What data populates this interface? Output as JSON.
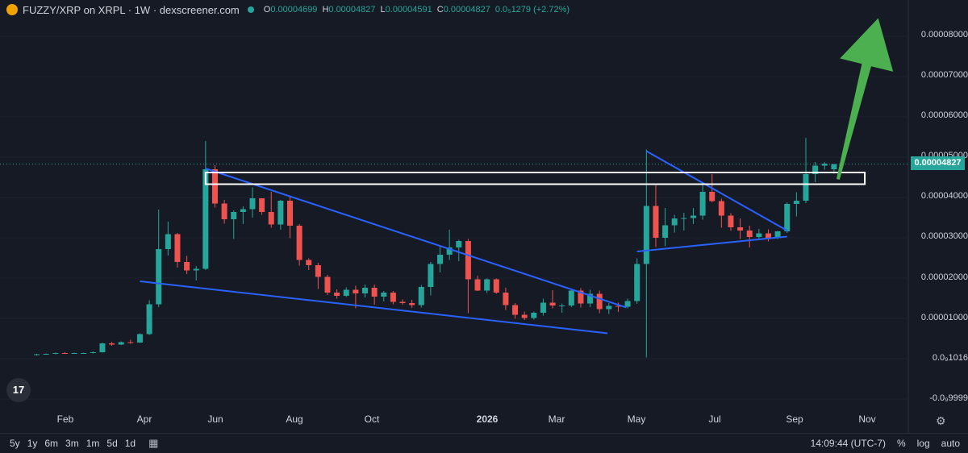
{
  "header": {
    "title": "FUZZY/XRP on XRPL · 1W · dexscreener.com",
    "ohlc": [
      {
        "k": "O",
        "v": "0.00004699"
      },
      {
        "k": "H",
        "v": "0.00004827"
      },
      {
        "k": "L",
        "v": "0.00004591"
      },
      {
        "k": "C",
        "v": "0.00004827"
      }
    ],
    "change": "0.0₅1279 (+2.72%)"
  },
  "price_axis": [
    "0.00008000",
    "0.00007000",
    "0.00006000",
    "0.00005000",
    "0.00004000",
    "0.00003000",
    "0.00002000",
    "0.00001000",
    "0.0₉1016",
    "-0.0₉9999"
  ],
  "last_price": "0.00004827",
  "time_axis": [
    "Feb",
    "Apr",
    "Jun",
    "Aug",
    "Oct",
    "2026",
    "Mar",
    "May",
    "Jul",
    "Sep",
    "Nov"
  ],
  "bottom_bar": {
    "ranges": [
      "5y",
      "1y",
      "6m",
      "3m",
      "1m",
      "5d",
      "1d"
    ],
    "time": "14:09:44 (UTC-7)",
    "pct": "%",
    "log": "log",
    "auto": "auto"
  },
  "logo_text": "17",
  "colors": {
    "up": "#26a69a",
    "down": "#ef5350",
    "trendline": "#2962ff",
    "arrow": "#4caf50",
    "box": "#ffffff"
  },
  "chart_data": {
    "type": "candlestick",
    "y_unit": "XRP",
    "ylim": [
      0,
      8.5e-05
    ],
    "x_range": [
      "2025-01-01",
      "2026-12-15"
    ],
    "candles": [
      {
        "t": "2025-01-20",
        "o": 9e-07,
        "h": 1.2e-06,
        "l": 8e-07,
        "c": 1.1e-06
      },
      {
        "t": "2025-01-27",
        "o": 1.1e-06,
        "h": 1.3e-06,
        "l": 1e-06,
        "c": 1.2e-06
      },
      {
        "t": "2025-02-03",
        "o": 1.2e-06,
        "h": 1.5e-06,
        "l": 1.1e-06,
        "c": 1.4e-06
      },
      {
        "t": "2025-02-10",
        "o": 1.4e-06,
        "h": 1.6e-06,
        "l": 1.2e-06,
        "c": 1.3e-06
      },
      {
        "t": "2025-02-17",
        "o": 1.3e-06,
        "h": 1.5e-06,
        "l": 1.2e-06,
        "c": 1.4e-06
      },
      {
        "t": "2025-02-24",
        "o": 1.4e-06,
        "h": 1.5e-06,
        "l": 1.3e-06,
        "c": 1.4e-06
      },
      {
        "t": "2025-03-03",
        "o": 1.4e-06,
        "h": 1.8e-06,
        "l": 1.3e-06,
        "c": 1.6e-06
      },
      {
        "t": "2025-03-10",
        "o": 1.6e-06,
        "h": 4e-06,
        "l": 1.5e-06,
        "c": 3.8e-06
      },
      {
        "t": "2025-03-17",
        "o": 3.8e-06,
        "h": 4.2e-06,
        "l": 3.2e-06,
        "c": 3.5e-06
      },
      {
        "t": "2025-03-24",
        "o": 3.5e-06,
        "h": 4.3e-06,
        "l": 3.4e-06,
        "c": 4.1e-06
      },
      {
        "t": "2025-03-31",
        "o": 4.1e-06,
        "h": 4.7e-06,
        "l": 3.7e-06,
        "c": 4e-06
      },
      {
        "t": "2025-04-07",
        "o": 4e-06,
        "h": 6.3e-06,
        "l": 3.9e-06,
        "c": 6.1e-06
      },
      {
        "t": "2025-04-14",
        "o": 6.1e-06,
        "h": 1.45e-05,
        "l": 5.9e-06,
        "c": 1.35e-05
      },
      {
        "t": "2025-04-21",
        "o": 1.35e-05,
        "h": 3.7e-05,
        "l": 1.28e-05,
        "c": 2.72e-05
      },
      {
        "t": "2025-04-28",
        "o": 2.72e-05,
        "h": 3.4e-05,
        "l": 2.56e-05,
        "c": 3.09e-05
      },
      {
        "t": "2025-05-05",
        "o": 3.09e-05,
        "h": 3.12e-05,
        "l": 2.26e-05,
        "c": 2.4e-05
      },
      {
        "t": "2025-05-12",
        "o": 2.4e-05,
        "h": 2.55e-05,
        "l": 2.1e-05,
        "c": 2.19e-05
      },
      {
        "t": "2025-05-19",
        "o": 2.19e-05,
        "h": 2.3e-05,
        "l": 1.94e-05,
        "c": 2.23e-05
      },
      {
        "t": "2025-05-26",
        "o": 2.23e-05,
        "h": 5.4e-05,
        "l": 2.2e-05,
        "c": 4.7e-05
      },
      {
        "t": "2025-06-02",
        "o": 4.7e-05,
        "h": 4.8e-05,
        "l": 3.75e-05,
        "c": 3.85e-05
      },
      {
        "t": "2025-06-09",
        "o": 3.85e-05,
        "h": 3.94e-05,
        "l": 3.35e-05,
        "c": 3.46e-05
      },
      {
        "t": "2025-06-16",
        "o": 3.46e-05,
        "h": 3.68e-05,
        "l": 2.97e-05,
        "c": 3.64e-05
      },
      {
        "t": "2025-06-23",
        "o": 3.64e-05,
        "h": 3.78e-05,
        "l": 3.34e-05,
        "c": 3.71e-05
      },
      {
        "t": "2025-06-30",
        "o": 3.71e-05,
        "h": 4.25e-05,
        "l": 3.5e-05,
        "c": 3.98e-05
      },
      {
        "t": "2025-07-07",
        "o": 3.98e-05,
        "h": 3.98e-05,
        "l": 3.57e-05,
        "c": 3.64e-05
      },
      {
        "t": "2025-07-14",
        "o": 3.64e-05,
        "h": 4.14e-05,
        "l": 3.25e-05,
        "c": 3.33e-05
      },
      {
        "t": "2025-07-21",
        "o": 3.33e-05,
        "h": 3.94e-05,
        "l": 3.2e-05,
        "c": 3.92e-05
      },
      {
        "t": "2025-07-28",
        "o": 3.92e-05,
        "h": 4.03e-05,
        "l": 2.99e-05,
        "c": 3.3e-05
      },
      {
        "t": "2025-08-04",
        "o": 3.3e-05,
        "h": 3.34e-05,
        "l": 2.31e-05,
        "c": 2.45e-05
      },
      {
        "t": "2025-08-11",
        "o": 2.45e-05,
        "h": 2.49e-05,
        "l": 2.2e-05,
        "c": 2.32e-05
      },
      {
        "t": "2025-08-18",
        "o": 2.32e-05,
        "h": 2.38e-05,
        "l": 1.73e-05,
        "c": 2.03e-05
      },
      {
        "t": "2025-08-25",
        "o": 2.03e-05,
        "h": 2.08e-05,
        "l": 1.58e-05,
        "c": 1.64e-05
      },
      {
        "t": "2025-09-01",
        "o": 1.64e-05,
        "h": 1.72e-05,
        "l": 1.49e-05,
        "c": 1.56e-05
      },
      {
        "t": "2025-09-08",
        "o": 1.56e-05,
        "h": 1.77e-05,
        "l": 1.53e-05,
        "c": 1.71e-05
      },
      {
        "t": "2025-09-15",
        "o": 1.71e-05,
        "h": 1.81e-05,
        "l": 1.25e-05,
        "c": 1.62e-05
      },
      {
        "t": "2025-09-22",
        "o": 1.62e-05,
        "h": 1.84e-05,
        "l": 1.52e-05,
        "c": 1.76e-05
      },
      {
        "t": "2025-09-29",
        "o": 1.76e-05,
        "h": 1.84e-05,
        "l": 1.34e-05,
        "c": 1.54e-05
      },
      {
        "t": "2025-10-06",
        "o": 1.54e-05,
        "h": 1.68e-05,
        "l": 1.42e-05,
        "c": 1.64e-05
      },
      {
        "t": "2025-10-13",
        "o": 1.64e-05,
        "h": 1.68e-05,
        "l": 1.35e-05,
        "c": 1.41e-05
      },
      {
        "t": "2025-10-20",
        "o": 1.41e-05,
        "h": 1.47e-05,
        "l": 1.34e-05,
        "c": 1.38e-05
      },
      {
        "t": "2025-10-27",
        "o": 1.38e-05,
        "h": 1.46e-05,
        "l": 1.26e-05,
        "c": 1.33e-05
      },
      {
        "t": "2025-11-03",
        "o": 1.33e-05,
        "h": 1.83e-05,
        "l": 1.27e-05,
        "c": 1.78e-05
      },
      {
        "t": "2025-11-10",
        "o": 1.78e-05,
        "h": 2.4e-05,
        "l": 1.57e-05,
        "c": 2.35e-05
      },
      {
        "t": "2025-11-17",
        "o": 2.35e-05,
        "h": 2.78e-05,
        "l": 2.14e-05,
        "c": 2.58e-05
      },
      {
        "t": "2025-11-24",
        "o": 2.58e-05,
        "h": 3.2e-05,
        "l": 2.45e-05,
        "c": 2.76e-05
      },
      {
        "t": "2025-12-01",
        "o": 2.76e-05,
        "h": 2.95e-05,
        "l": 2.42e-05,
        "c": 2.92e-05
      },
      {
        "t": "2025-12-08",
        "o": 2.92e-05,
        "h": 2.97e-05,
        "l": 1.13e-05,
        "c": 1.97e-05
      },
      {
        "t": "2025-12-15",
        "o": 1.97e-05,
        "h": 2.06e-05,
        "l": 1.68e-05,
        "c": 1.69e-05
      },
      {
        "t": "2025-12-22",
        "o": 1.69e-05,
        "h": 1.99e-05,
        "l": 1.63e-05,
        "c": 1.97e-05
      },
      {
        "t": "2025-12-29",
        "o": 1.97e-05,
        "h": 1.99e-05,
        "l": 1.61e-05,
        "c": 1.64e-05
      },
      {
        "t": "2026-01-05",
        "o": 1.64e-05,
        "h": 1.76e-05,
        "l": 1.21e-05,
        "c": 1.33e-05
      },
      {
        "t": "2026-01-12",
        "o": 1.33e-05,
        "h": 1.38e-05,
        "l": 9.9e-06,
        "c": 1.09e-05
      },
      {
        "t": "2026-01-19",
        "o": 1.09e-05,
        "h": 1.17e-05,
        "l": 9.6e-06,
        "c": 1.01e-05
      },
      {
        "t": "2026-01-26",
        "o": 1.01e-05,
        "h": 1.17e-05,
        "l": 9.7e-06,
        "c": 1.14e-05
      },
      {
        "t": "2026-02-02",
        "o": 1.14e-05,
        "h": 1.49e-05,
        "l": 1.07e-05,
        "c": 1.39e-05
      },
      {
        "t": "2026-02-09",
        "o": 1.39e-05,
        "h": 1.7e-05,
        "l": 1.25e-05,
        "c": 1.32e-05
      },
      {
        "t": "2026-02-16",
        "o": 1.32e-05,
        "h": 1.37e-05,
        "l": 1.14e-05,
        "c": 1.32e-05
      },
      {
        "t": "2026-02-23",
        "o": 1.32e-05,
        "h": 1.71e-05,
        "l": 1.28e-05,
        "c": 1.69e-05
      },
      {
        "t": "2026-03-02",
        "o": 1.69e-05,
        "h": 1.75e-05,
        "l": 1.27e-05,
        "c": 1.37e-05
      },
      {
        "t": "2026-03-09",
        "o": 1.37e-05,
        "h": 1.71e-05,
        "l": 1.28e-05,
        "c": 1.61e-05
      },
      {
        "t": "2026-03-16",
        "o": 1.61e-05,
        "h": 1.69e-05,
        "l": 1.13e-05,
        "c": 1.23e-05
      },
      {
        "t": "2026-03-23",
        "o": 1.23e-05,
        "h": 1.38e-05,
        "l": 1.11e-05,
        "c": 1.31e-05
      },
      {
        "t": "2026-03-30",
        "o": 1.31e-05,
        "h": 1.39e-05,
        "l": 1.16e-05,
        "c": 1.29e-05
      },
      {
        "t": "2026-04-06",
        "o": 1.29e-05,
        "h": 1.49e-05,
        "l": 1.25e-05,
        "c": 1.43e-05
      },
      {
        "t": "2026-04-13",
        "o": 1.43e-05,
        "h": 2.49e-05,
        "l": 1.36e-05,
        "c": 2.35e-05
      },
      {
        "t": "2026-04-20",
        "o": 2.35e-05,
        "h": 5.19e-05,
        "l": 3e-07,
        "c": 3.79e-05
      },
      {
        "t": "2026-04-27",
        "o": 3.79e-05,
        "h": 4.35e-05,
        "l": 2.77e-05,
        "c": 3e-05
      },
      {
        "t": "2026-05-04",
        "o": 3e-05,
        "h": 3.74e-05,
        "l": 2.79e-05,
        "c": 3.31e-05
      },
      {
        "t": "2026-05-11",
        "o": 3.31e-05,
        "h": 3.57e-05,
        "l": 3.13e-05,
        "c": 3.48e-05
      },
      {
        "t": "2026-05-18",
        "o": 3.48e-05,
        "h": 3.62e-05,
        "l": 3.18e-05,
        "c": 3.49e-05
      },
      {
        "t": "2026-05-25",
        "o": 3.49e-05,
        "h": 3.74e-05,
        "l": 3.34e-05,
        "c": 3.55e-05
      },
      {
        "t": "2026-06-01",
        "o": 3.55e-05,
        "h": 4.33e-05,
        "l": 3.45e-05,
        "c": 4.14e-05
      },
      {
        "t": "2026-06-08",
        "o": 4.14e-05,
        "h": 4.58e-05,
        "l": 3.88e-05,
        "c": 3.91e-05
      },
      {
        "t": "2026-06-15",
        "o": 3.91e-05,
        "h": 3.97e-05,
        "l": 3.25e-05,
        "c": 3.55e-05
      },
      {
        "t": "2026-06-22",
        "o": 3.55e-05,
        "h": 3.61e-05,
        "l": 3.17e-05,
        "c": 3.26e-05
      },
      {
        "t": "2026-06-29",
        "o": 3.26e-05,
        "h": 3.48e-05,
        "l": 2.97e-05,
        "c": 3.18e-05
      },
      {
        "t": "2026-07-06",
        "o": 3.18e-05,
        "h": 3.3e-05,
        "l": 2.76e-05,
        "c": 3.02e-05
      },
      {
        "t": "2026-07-13",
        "o": 3.02e-05,
        "h": 3.22e-05,
        "l": 2.97e-05,
        "c": 3.11e-05
      },
      {
        "t": "2026-07-20",
        "o": 3.11e-05,
        "h": 3.21e-05,
        "l": 2.91e-05,
        "c": 2.99e-05
      },
      {
        "t": "2026-07-27",
        "o": 2.99e-05,
        "h": 3.17e-05,
        "l": 2.97e-05,
        "c": 3.16e-05
      },
      {
        "t": "2026-08-03",
        "o": 3.16e-05,
        "h": 3.88e-05,
        "l": 3.12e-05,
        "c": 3.84e-05
      },
      {
        "t": "2026-08-10",
        "o": 3.84e-05,
        "h": 4.13e-05,
        "l": 3.53e-05,
        "c": 3.92e-05
      },
      {
        "t": "2026-08-17",
        "o": 3.92e-05,
        "h": 5.48e-05,
        "l": 3.86e-05,
        "c": 4.58e-05
      },
      {
        "t": "2026-08-24",
        "o": 4.58e-05,
        "h": 4.88e-05,
        "l": 4.38e-05,
        "c": 4.79e-05
      },
      {
        "t": "2026-08-31",
        "o": 4.79e-05,
        "h": 4.88e-05,
        "l": 4.69e-05,
        "c": 4.84e-05
      },
      {
        "t": "2026-09-07",
        "o": 4.699e-05,
        "h": 4.827e-05,
        "l": 4.591e-05,
        "c": 4.827e-05
      }
    ],
    "drawings": {
      "trendlines": [
        {
          "from": [
            "2025-05-26",
            4.72e-05
          ],
          "to": [
            "2026-04-05",
            1.27e-05
          ]
        },
        {
          "from": [
            "2025-04-07",
            1.92e-05
          ],
          "to": [
            "2026-03-22",
            6.3e-06
          ]
        },
        {
          "from": [
            "2026-04-20",
            5.15e-05
          ],
          "to": [
            "2026-08-03",
            3.18e-05
          ]
        },
        {
          "from": [
            "2026-04-13",
            2.66e-05
          ],
          "to": [
            "2026-08-03",
            3.03e-05
          ]
        }
      ],
      "resistance_box": {
        "from": "2025-05-26",
        "to": "2026-09-30",
        "y_top": 4.62e-05,
        "y_bottom": 4.33e-05
      },
      "arrow": {
        "from": [
          "2026-09-10",
          4.45e-05
        ],
        "to": [
          "2026-10-10",
          8.45e-05
        ]
      }
    }
  }
}
